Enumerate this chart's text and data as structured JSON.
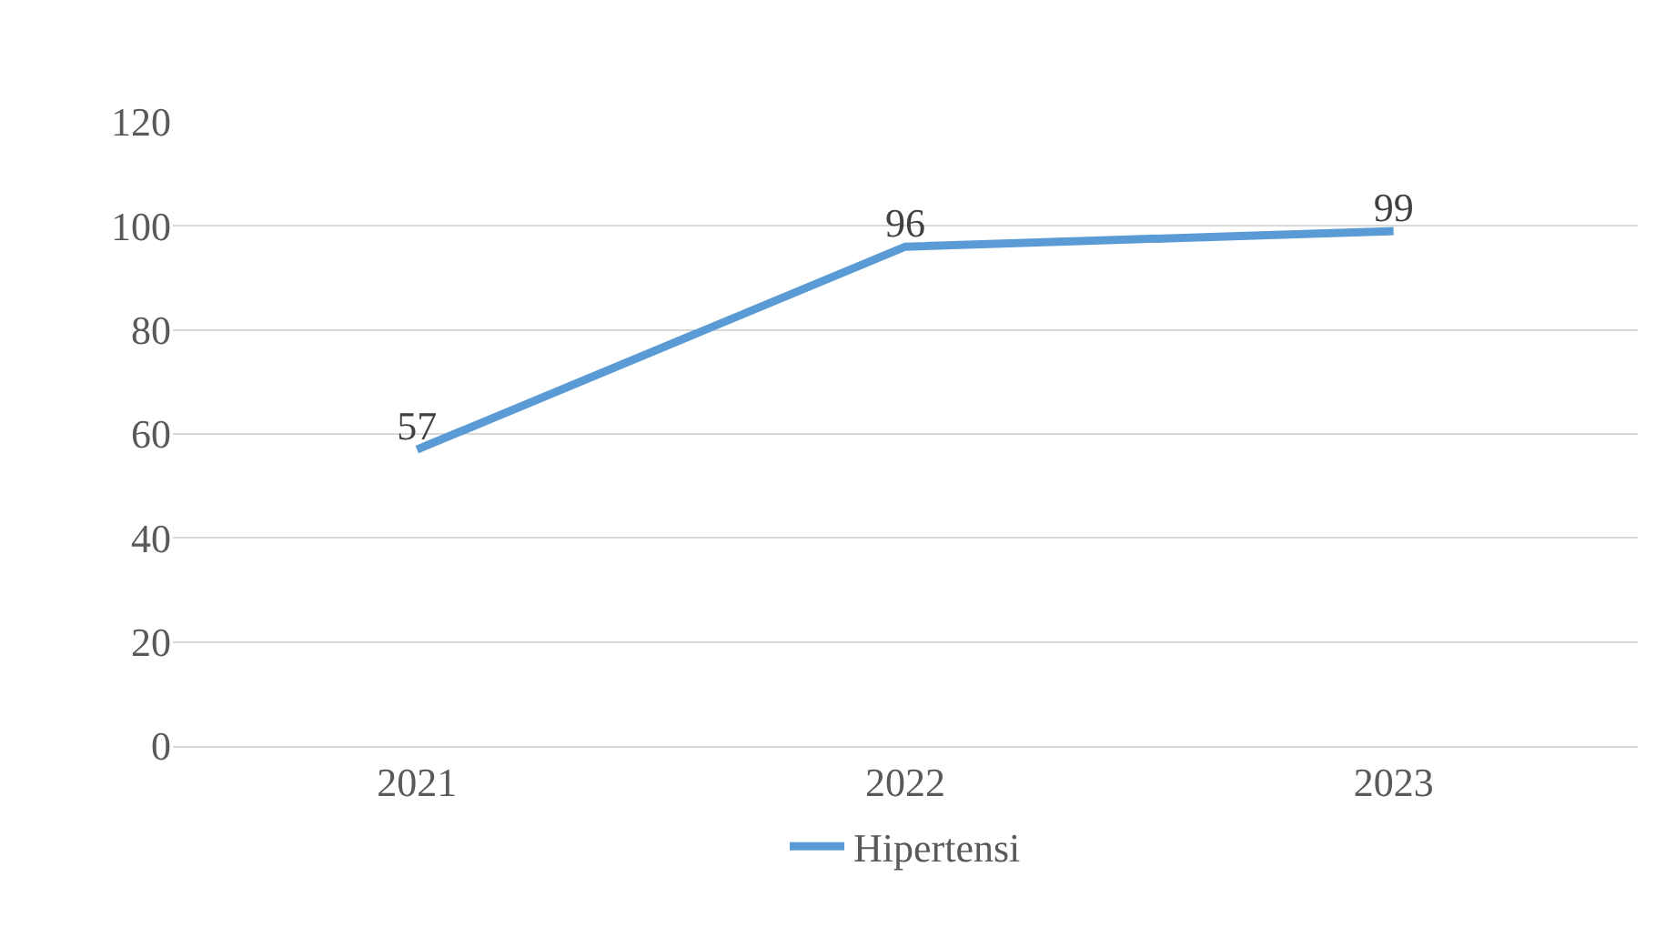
{
  "chart_data": {
    "type": "line",
    "categories": [
      "2021",
      "2022",
      "2023"
    ],
    "series": [
      {
        "name": "Hipertensi",
        "color": "#5b9bd5",
        "values": [
          57,
          96,
          99
        ]
      }
    ],
    "ylim": [
      0,
      120
    ],
    "yticks": [
      0,
      20,
      40,
      60,
      80,
      100,
      120
    ],
    "grid": "y",
    "legend": "bottom",
    "data_labels": true,
    "marker": "none",
    "line_style": "solid"
  }
}
